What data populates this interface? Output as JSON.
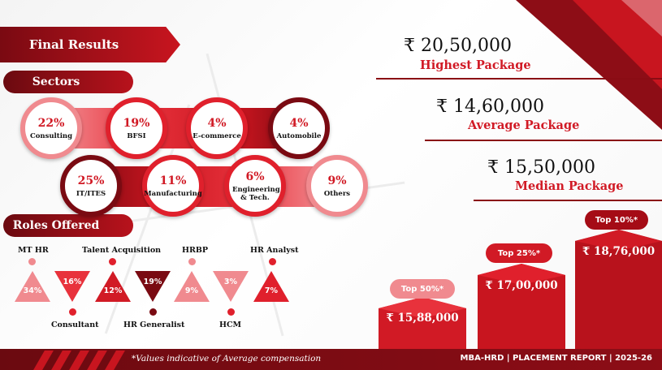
{
  "headers": {
    "final_results": "Final Results",
    "sectors": "Sectors",
    "roles_offered": "Roles Offered"
  },
  "sectors": [
    {
      "pct": "22%",
      "label": "Consulting"
    },
    {
      "pct": "19%",
      "label": "BFSI"
    },
    {
      "pct": "4%",
      "label": "E-commerce"
    },
    {
      "pct": "4%",
      "label": "Automobile"
    },
    {
      "pct": "25%",
      "label": "IT/ITES"
    },
    {
      "pct": "11%",
      "label": "Manufacturing"
    },
    {
      "pct": "6%",
      "label": "Engineering & Tech."
    },
    {
      "pct": "9%",
      "label": "Others"
    }
  ],
  "roles": [
    {
      "label": "MT HR",
      "value": "34%"
    },
    {
      "label": "Consultant",
      "value": "16%"
    },
    {
      "label": "Talent Acquisition",
      "value": "12%"
    },
    {
      "label": "HR Generalist",
      "value": "19%"
    },
    {
      "label": "HRBP",
      "value": "9%"
    },
    {
      "label": "HCM",
      "value": "3%"
    },
    {
      "label": "HR Analyst",
      "value": "7%"
    }
  ],
  "stats": {
    "highest": {
      "amount": "₹ 20,50,000",
      "label": "Highest Package"
    },
    "average": {
      "amount": "₹ 14,60,000",
      "label": "Average Package"
    },
    "median": {
      "amount": "₹ 15,50,000",
      "label": "Median Package"
    }
  },
  "tiers": [
    {
      "tag": "Top 50%*",
      "amount": "₹ 15,88,000"
    },
    {
      "tag": "Top 25%*",
      "amount": "₹ 17,00,000"
    },
    {
      "tag": "Top 10%*",
      "amount": "₹ 18,76,000"
    }
  ],
  "footer": {
    "note": "*Values indicative of Average compensation",
    "report": "MBA-HRD | PLACEMENT REPORT | 2025-26"
  },
  "colors": {
    "primary_red": "#d11a25",
    "dark_red": "#7a0a12",
    "light_red": "#f08a8f"
  }
}
